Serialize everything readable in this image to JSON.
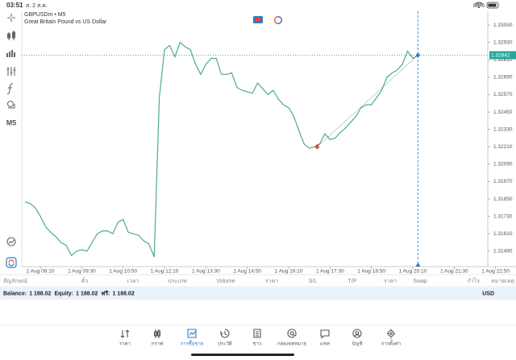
{
  "status_bar": {
    "time": "03:51",
    "date": "ส. 2 ส.ค.",
    "battery": "86%"
  },
  "toolbar": {
    "timeframe": "M5"
  },
  "chart_data": {
    "type": "line",
    "title": "GBPUSDm • M5",
    "subtitle": "Great Britain Pound vs US Dollar",
    "color": "#4caf82",
    "x": [
      "1 Aug 07:40",
      "1 Aug 07:50",
      "1 Aug 08:00",
      "1 Aug 08:10",
      "1 Aug 08:20",
      "1 Aug 08:30",
      "1 Aug 08:40",
      "1 Aug 08:50",
      "1 Aug 09:00",
      "1 Aug 09:10",
      "1 Aug 09:20",
      "1 Aug 09:30",
      "1 Aug 09:40",
      "1 Aug 09:50",
      "1 Aug 10:00",
      "1 Aug 10:10",
      "1 Aug 10:20",
      "1 Aug 10:30",
      "1 Aug 10:40",
      "1 Aug 10:50",
      "1 Aug 11:00",
      "1 Aug 11:10",
      "1 Aug 11:20",
      "1 Aug 11:30",
      "1 Aug 11:40",
      "1 Aug 11:50",
      "1 Aug 12:00",
      "1 Aug 12:10",
      "1 Aug 12:20",
      "1 Aug 12:30",
      "1 Aug 12:40",
      "1 Aug 12:50",
      "1 Aug 13:00",
      "1 Aug 13:10",
      "1 Aug 13:20",
      "1 Aug 13:30",
      "1 Aug 13:40",
      "1 Aug 13:50",
      "1 Aug 14:00",
      "1 Aug 14:10",
      "1 Aug 14:20",
      "1 Aug 14:30",
      "1 Aug 14:40",
      "1 Aug 14:50",
      "1 Aug 15:00",
      "1 Aug 15:10",
      "1 Aug 15:20",
      "1 Aug 15:30",
      "1 Aug 15:40",
      "1 Aug 15:50",
      "1 Aug 16:00",
      "1 Aug 16:10",
      "1 Aug 16:20",
      "1 Aug 16:30",
      "1 Aug 16:40",
      "1 Aug 16:50",
      "1 Aug 17:00",
      "1 Aug 17:10",
      "1 Aug 17:20",
      "1 Aug 17:30",
      "1 Aug 17:40",
      "1 Aug 17:50",
      "1 Aug 18:00",
      "1 Aug 18:10",
      "1 Aug 18:20",
      "1 Aug 18:30",
      "1 Aug 18:40",
      "1 Aug 18:50",
      "1 Aug 19:00",
      "1 Aug 19:10",
      "1 Aug 19:20",
      "1 Aug 19:30",
      "1 Aug 19:40",
      "1 Aug 19:50",
      "1 Aug 20:00",
      "1 Aug 20:10",
      "1 Aug 20:20"
    ],
    "values": [
      1.3183,
      1.3182,
      1.3179,
      1.3173,
      1.3166,
      1.3162,
      1.3159,
      1.3155,
      1.3153,
      1.3146,
      1.3149,
      1.315,
      1.3149,
      1.3155,
      1.3161,
      1.3163,
      1.3163,
      1.3161,
      1.3169,
      1.3171,
      1.3162,
      1.3161,
      1.316,
      1.3156,
      1.3154,
      1.3145,
      1.3255,
      1.3288,
      1.3291,
      1.3283,
      1.3293,
      1.329,
      1.3288,
      1.3278,
      1.3271,
      1.3278,
      1.3282,
      1.3282,
      1.3271,
      1.3271,
      1.3272,
      1.3262,
      1.326,
      1.3259,
      1.3258,
      1.3265,
      1.3261,
      1.3257,
      1.326,
      1.3254,
      1.325,
      1.3248,
      1.3242,
      1.3232,
      1.3223,
      1.322,
      1.3221,
      1.3223,
      1.323,
      1.3226,
      1.3227,
      1.3231,
      1.3234,
      1.3238,
      1.3242,
      1.3248,
      1.325,
      1.325,
      1.3255,
      1.326,
      1.3269,
      1.3272,
      1.3274,
      1.3278,
      1.3287,
      1.3282,
      1.32842
    ],
    "xlim": [
      "1 Aug 07:34",
      "1 Aug 22:35"
    ],
    "xticks": [
      "1 Aug 08:10",
      "1 Aug 09:30",
      "1 Aug 10:50",
      "1 Aug 12:10",
      "1 Aug 13:30",
      "1 Aug 14:50",
      "1 Aug 16:10",
      "1 Aug 17:30",
      "1 Aug 18:50",
      "1 Aug 20:10",
      "1 Aug 21:30",
      "1 Aug 22:50"
    ],
    "ylim": [
      1.31384,
      1.33145
    ],
    "yticks": [
      {
        "value": 1.3305,
        "label": "1.33050"
      },
      {
        "value": 1.3293,
        "label": "1.32930"
      },
      {
        "value": 1.3281,
        "label": "1.32810"
      },
      {
        "value": 1.3269,
        "label": "1.32690"
      },
      {
        "value": 1.3257,
        "label": "1.32570"
      },
      {
        "value": 1.3245,
        "label": "1.32450"
      },
      {
        "value": 1.3233,
        "label": "1.32330"
      },
      {
        "value": 1.3221,
        "label": "1.32210"
      },
      {
        "value": 1.3209,
        "label": "1.32090"
      },
      {
        "value": 1.3197,
        "label": "1.31970"
      },
      {
        "value": 1.3185,
        "label": "1.31850"
      },
      {
        "value": 1.3173,
        "label": "1.31730"
      },
      {
        "value": 1.3161,
        "label": "1.31610"
      },
      {
        "value": 1.3149,
        "label": "1.31490"
      }
    ],
    "current_price": 1.32842,
    "trade_open": {
      "x": "1 Aug 17:05",
      "value": 1.3221
    }
  },
  "table": {
    "headers": [
      "สัญลักษณ์",
      "ตั๋ว",
      "เวลา",
      "ประเภท",
      "Volume",
      "ราคา",
      "S/L",
      "T/P",
      "ราคา",
      "Swap",
      "กำไร",
      "หมายเหตุ"
    ]
  },
  "account": {
    "items": [
      {
        "label": "Balance:",
        "value": "1 188.02"
      },
      {
        "label": "Equity:",
        "value": "1 188.02"
      },
      {
        "label": "ฟรี:",
        "value": "1 188.02"
      }
    ],
    "currency": "USD"
  },
  "nav": {
    "items": [
      "ราคา",
      "กราฟ",
      "การซื้อขาย",
      "ประวัติ",
      "ข่าว",
      "กล่องจดหมาย",
      "แชท",
      "บัญชี",
      "การตั้งค่า"
    ],
    "active": 2
  }
}
